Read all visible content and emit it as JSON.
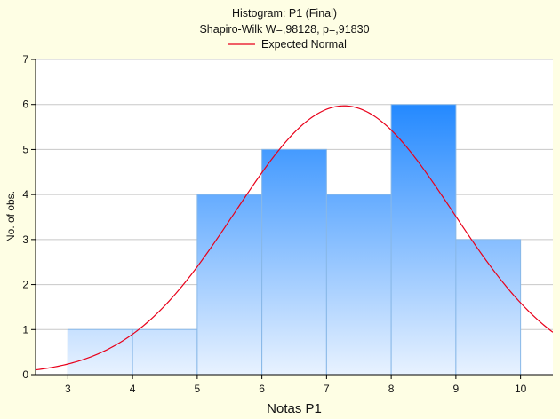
{
  "chart_data": {
    "type": "bar",
    "title": "Histogram: P1 (Final)",
    "subtitle": "Shapiro-Wilk W=,98128, p=,91830",
    "legend": {
      "label": "Expected Normal",
      "color": "#e8001a",
      "placement": "top-center"
    },
    "xlabel": "Notas P1",
    "ylabel": "No. of obs.",
    "xlim": [
      2.5,
      10.5
    ],
    "ylim": [
      0,
      7
    ],
    "x_ticks": [
      "3",
      "4",
      "5",
      "6",
      "7",
      "8",
      "9",
      "10"
    ],
    "y_ticks": [
      "0",
      "1",
      "2",
      "3",
      "4",
      "5",
      "6",
      "7"
    ],
    "bins": [
      {
        "from": 3,
        "to": 5,
        "count": 1
      },
      {
        "from": 5,
        "to": 6,
        "count": 4
      },
      {
        "from": 6,
        "to": 7,
        "count": 5
      },
      {
        "from": 7,
        "to": 8,
        "count": 4
      },
      {
        "from": 8,
        "to": 9,
        "count": 6
      },
      {
        "from": 9,
        "to": 10,
        "count": 3
      }
    ],
    "expected_normal": {
      "mean": 7.27,
      "sd": 1.68,
      "peak": 5.97
    },
    "grid": {
      "horizontal": true,
      "vertical": false
    },
    "colors": {
      "background": "#fefee4",
      "plot_background": "#ffffff",
      "bar_top": "#2288ff",
      "bar_bottom": "#e8f2ff",
      "bar_border": "#88b8e8",
      "grid": "#c8c8c8",
      "axis": "#000000"
    }
  }
}
